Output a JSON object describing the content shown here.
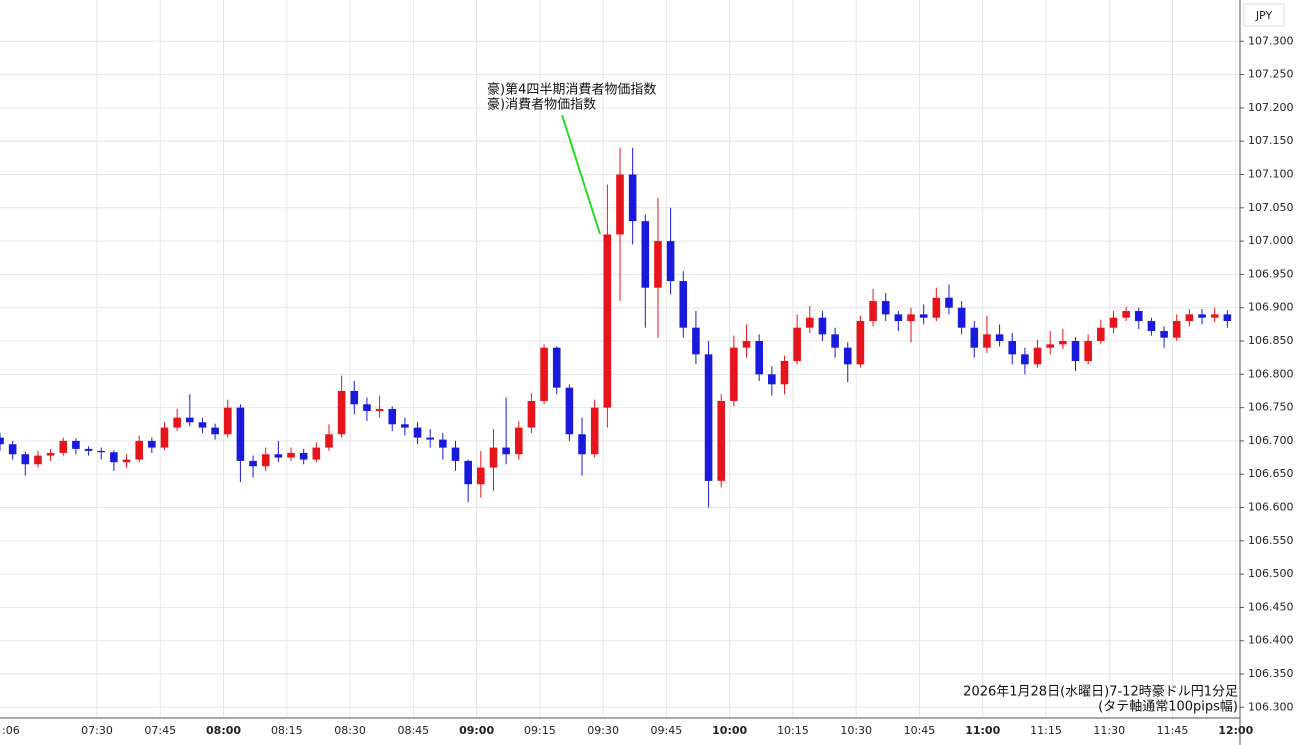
{
  "chart_data": {
    "type": "candlestick",
    "currency": "JPY",
    "annotation": [
      "豪)第4四半期消費者物価指数",
      "豪)消費者物価指数"
    ],
    "caption": [
      "2026年1月28日(水曜日)7-12時豪ドル円1分足",
      "(タテ軸通常100pips幅)"
    ],
    "up_color": "#e8141b",
    "down_color": "#1a1adc",
    "grid": true,
    "xlim": [
      "07:07",
      "12:01"
    ],
    "ylim": [
      106.284,
      107.362
    ],
    "xticks": [
      {
        "value": "07:06",
        "label": ":06"
      },
      "07:30",
      "07:45",
      "08:00",
      "08:15",
      "08:30",
      "08:45",
      "09:00",
      "09:15",
      "09:30",
      "09:45",
      "10:00",
      "10:15",
      "10:30",
      "10:45",
      "11:00",
      "11:15",
      "11:30",
      "11:45",
      "12:00"
    ],
    "yticks": [
      {
        "value": 106.3,
        "label": "106.300"
      },
      {
        "value": 106.35,
        "label": "106.350"
      },
      {
        "value": 106.4,
        "label": "106.400"
      },
      {
        "value": 106.45,
        "label": "106.450"
      },
      {
        "value": 106.5,
        "label": "106.500"
      },
      {
        "value": 106.55,
        "label": "106.550"
      },
      {
        "value": 106.6,
        "label": "106.600"
      },
      {
        "value": 106.65,
        "label": "106.650"
      },
      {
        "value": 106.7,
        "label": "106.700"
      },
      {
        "value": 106.75,
        "label": "106.750"
      },
      {
        "value": 106.8,
        "label": "106.800"
      },
      {
        "value": 106.85,
        "label": "106.850"
      },
      {
        "value": 106.9,
        "label": "106.900"
      },
      {
        "value": 106.95,
        "label": "106.950"
      },
      {
        "value": 107.0,
        "label": "107.000"
      },
      {
        "value": 107.05,
        "label": "107.050"
      },
      {
        "value": 107.1,
        "label": "107.100"
      },
      {
        "value": 107.15,
        "label": "107.150"
      },
      {
        "value": 107.2,
        "label": "107.200"
      },
      {
        "value": 107.25,
        "label": "107.250"
      },
      {
        "value": 107.3,
        "label": "107.300"
      }
    ],
    "x": [
      "07:07",
      "07:10",
      "07:13",
      "07:16",
      "07:19",
      "07:22",
      "07:25",
      "07:28",
      "07:31",
      "07:34",
      "07:37",
      "07:40",
      "07:43",
      "07:46",
      "07:49",
      "07:52",
      "07:55",
      "07:58",
      "08:01",
      "08:04",
      "08:07",
      "08:10",
      "08:13",
      "08:16",
      "08:19",
      "08:22",
      "08:25",
      "08:28",
      "08:31",
      "08:34",
      "08:37",
      "08:40",
      "08:43",
      "08:46",
      "08:49",
      "08:52",
      "08:55",
      "08:58",
      "09:01",
      "09:04",
      "09:07",
      "09:10",
      "09:13",
      "09:16",
      "09:19",
      "09:22",
      "09:25",
      "09:28",
      "09:31",
      "09:34",
      "09:37",
      "09:40",
      "09:43",
      "09:46",
      "09:49",
      "09:52",
      "09:55",
      "09:58",
      "10:01",
      "10:04",
      "10:07",
      "10:10",
      "10:13",
      "10:16",
      "10:19",
      "10:22",
      "10:25",
      "10:28",
      "10:31",
      "10:34",
      "10:37",
      "10:40",
      "10:43",
      "10:46",
      "10:49",
      "10:52",
      "10:55",
      "10:58",
      "11:01",
      "11:04",
      "11:07",
      "11:10",
      "11:13",
      "11:16",
      "11:19",
      "11:22",
      "11:25",
      "11:28",
      "11:31",
      "11:34",
      "11:37",
      "11:40",
      "11:43",
      "11:46",
      "11:49",
      "11:52",
      "11:55",
      "11:58"
    ],
    "open": [
      106.705,
      106.695,
      106.68,
      106.665,
      106.678,
      106.682,
      106.7,
      106.688,
      106.685,
      106.683,
      106.668,
      106.672,
      106.7,
      106.69,
      106.72,
      106.735,
      106.728,
      106.72,
      106.71,
      106.75,
      106.67,
      106.662,
      106.68,
      106.675,
      106.682,
      106.672,
      106.69,
      106.71,
      106.775,
      106.755,
      106.745,
      106.748,
      106.725,
      106.72,
      106.705,
      106.702,
      106.69,
      106.67,
      106.635,
      106.66,
      106.69,
      106.68,
      106.72,
      106.76,
      106.84,
      106.78,
      106.71,
      106.68,
      106.75,
      107.01,
      107.1,
      107.03,
      106.93,
      107.0,
      106.94,
      106.87,
      106.83,
      106.64,
      106.76,
      106.84,
      106.85,
      106.8,
      106.785,
      106.82,
      106.87,
      106.885,
      106.86,
      106.84,
      106.815,
      106.88,
      106.91,
      106.89,
      106.88,
      106.89,
      106.885,
      106.915,
      106.9,
      106.87,
      106.84,
      106.86,
      106.85,
      106.83,
      106.815,
      106.84,
      106.845,
      106.85,
      106.82,
      106.85,
      106.87,
      106.885,
      106.895,
      106.88,
      106.865,
      106.855,
      106.88,
      106.89,
      106.885,
      106.89
    ],
    "high": [
      106.712,
      106.7,
      106.684,
      106.685,
      106.688,
      106.705,
      106.704,
      106.692,
      106.69,
      106.686,
      106.68,
      106.708,
      106.705,
      106.728,
      106.748,
      106.77,
      106.735,
      106.726,
      106.762,
      106.755,
      106.678,
      106.69,
      106.7,
      106.69,
      106.688,
      106.698,
      106.725,
      106.798,
      106.79,
      106.765,
      106.768,
      106.752,
      106.735,
      106.728,
      106.718,
      106.712,
      106.7,
      106.672,
      106.685,
      106.718,
      106.765,
      106.73,
      106.772,
      106.845,
      106.842,
      106.785,
      106.735,
      106.762,
      107.085,
      107.14,
      107.14,
      107.04,
      107.065,
      107.05,
      106.955,
      106.895,
      106.85,
      106.77,
      106.858,
      106.875,
      106.86,
      106.812,
      106.828,
      106.89,
      106.903,
      106.895,
      106.87,
      106.848,
      106.888,
      106.928,
      106.922,
      106.895,
      106.9,
      106.905,
      106.93,
      106.935,
      106.91,
      106.88,
      106.888,
      106.875,
      106.862,
      106.84,
      106.852,
      106.865,
      106.868,
      106.856,
      106.86,
      106.882,
      106.895,
      106.902,
      106.9,
      106.885,
      106.872,
      106.89,
      106.898,
      106.898,
      106.9,
      106.896
    ],
    "low": [
      106.685,
      106.672,
      106.648,
      106.66,
      106.67,
      106.678,
      106.68,
      106.678,
      106.672,
      106.655,
      106.66,
      106.668,
      106.682,
      106.686,
      106.715,
      106.722,
      106.712,
      106.702,
      106.705,
      106.638,
      106.645,
      106.655,
      106.668,
      106.67,
      106.665,
      106.668,
      106.685,
      106.705,
      106.74,
      106.73,
      106.735,
      106.715,
      106.708,
      106.695,
      106.69,
      106.672,
      106.655,
      106.608,
      106.615,
      106.625,
      106.665,
      106.672,
      106.712,
      106.755,
      106.77,
      106.7,
      106.648,
      106.675,
      106.72,
      106.91,
      106.995,
      106.87,
      106.855,
      106.92,
      106.855,
      106.815,
      106.6,
      106.63,
      106.752,
      106.825,
      106.79,
      106.768,
      106.77,
      106.815,
      106.862,
      106.85,
      106.825,
      106.788,
      106.81,
      106.872,
      106.88,
      106.865,
      106.848,
      106.875,
      106.88,
      106.89,
      106.86,
      106.825,
      106.832,
      106.842,
      106.815,
      106.8,
      106.81,
      106.83,
      106.838,
      106.805,
      106.815,
      106.845,
      106.862,
      106.88,
      106.868,
      106.858,
      106.84,
      106.85,
      106.872,
      106.875,
      106.878,
      106.87
    ],
    "close": [
      106.695,
      106.68,
      106.665,
      106.678,
      106.682,
      106.7,
      106.688,
      106.685,
      106.683,
      106.668,
      106.672,
      106.7,
      106.69,
      106.72,
      106.735,
      106.728,
      106.72,
      106.71,
      106.75,
      106.67,
      106.662,
      106.68,
      106.675,
      106.682,
      106.672,
      106.69,
      106.71,
      106.775,
      106.755,
      106.745,
      106.748,
      106.725,
      106.72,
      106.705,
      106.702,
      106.69,
      106.67,
      106.635,
      106.66,
      106.69,
      106.68,
      106.72,
      106.76,
      106.84,
      106.78,
      106.71,
      106.68,
      106.75,
      107.01,
      107.1,
      107.03,
      106.93,
      107.0,
      106.94,
      106.87,
      106.83,
      106.64,
      106.76,
      106.84,
      106.85,
      106.8,
      106.785,
      106.82,
      106.87,
      106.885,
      106.86,
      106.84,
      106.815,
      106.88,
      106.91,
      106.89,
      106.88,
      106.89,
      106.885,
      106.915,
      106.9,
      106.87,
      106.84,
      106.86,
      106.85,
      106.83,
      106.815,
      106.84,
      106.845,
      106.85,
      106.82,
      106.85,
      106.87,
      106.885,
      106.895,
      106.88,
      106.865,
      106.855,
      106.88,
      106.89,
      106.885,
      106.89,
      106.88
    ]
  }
}
